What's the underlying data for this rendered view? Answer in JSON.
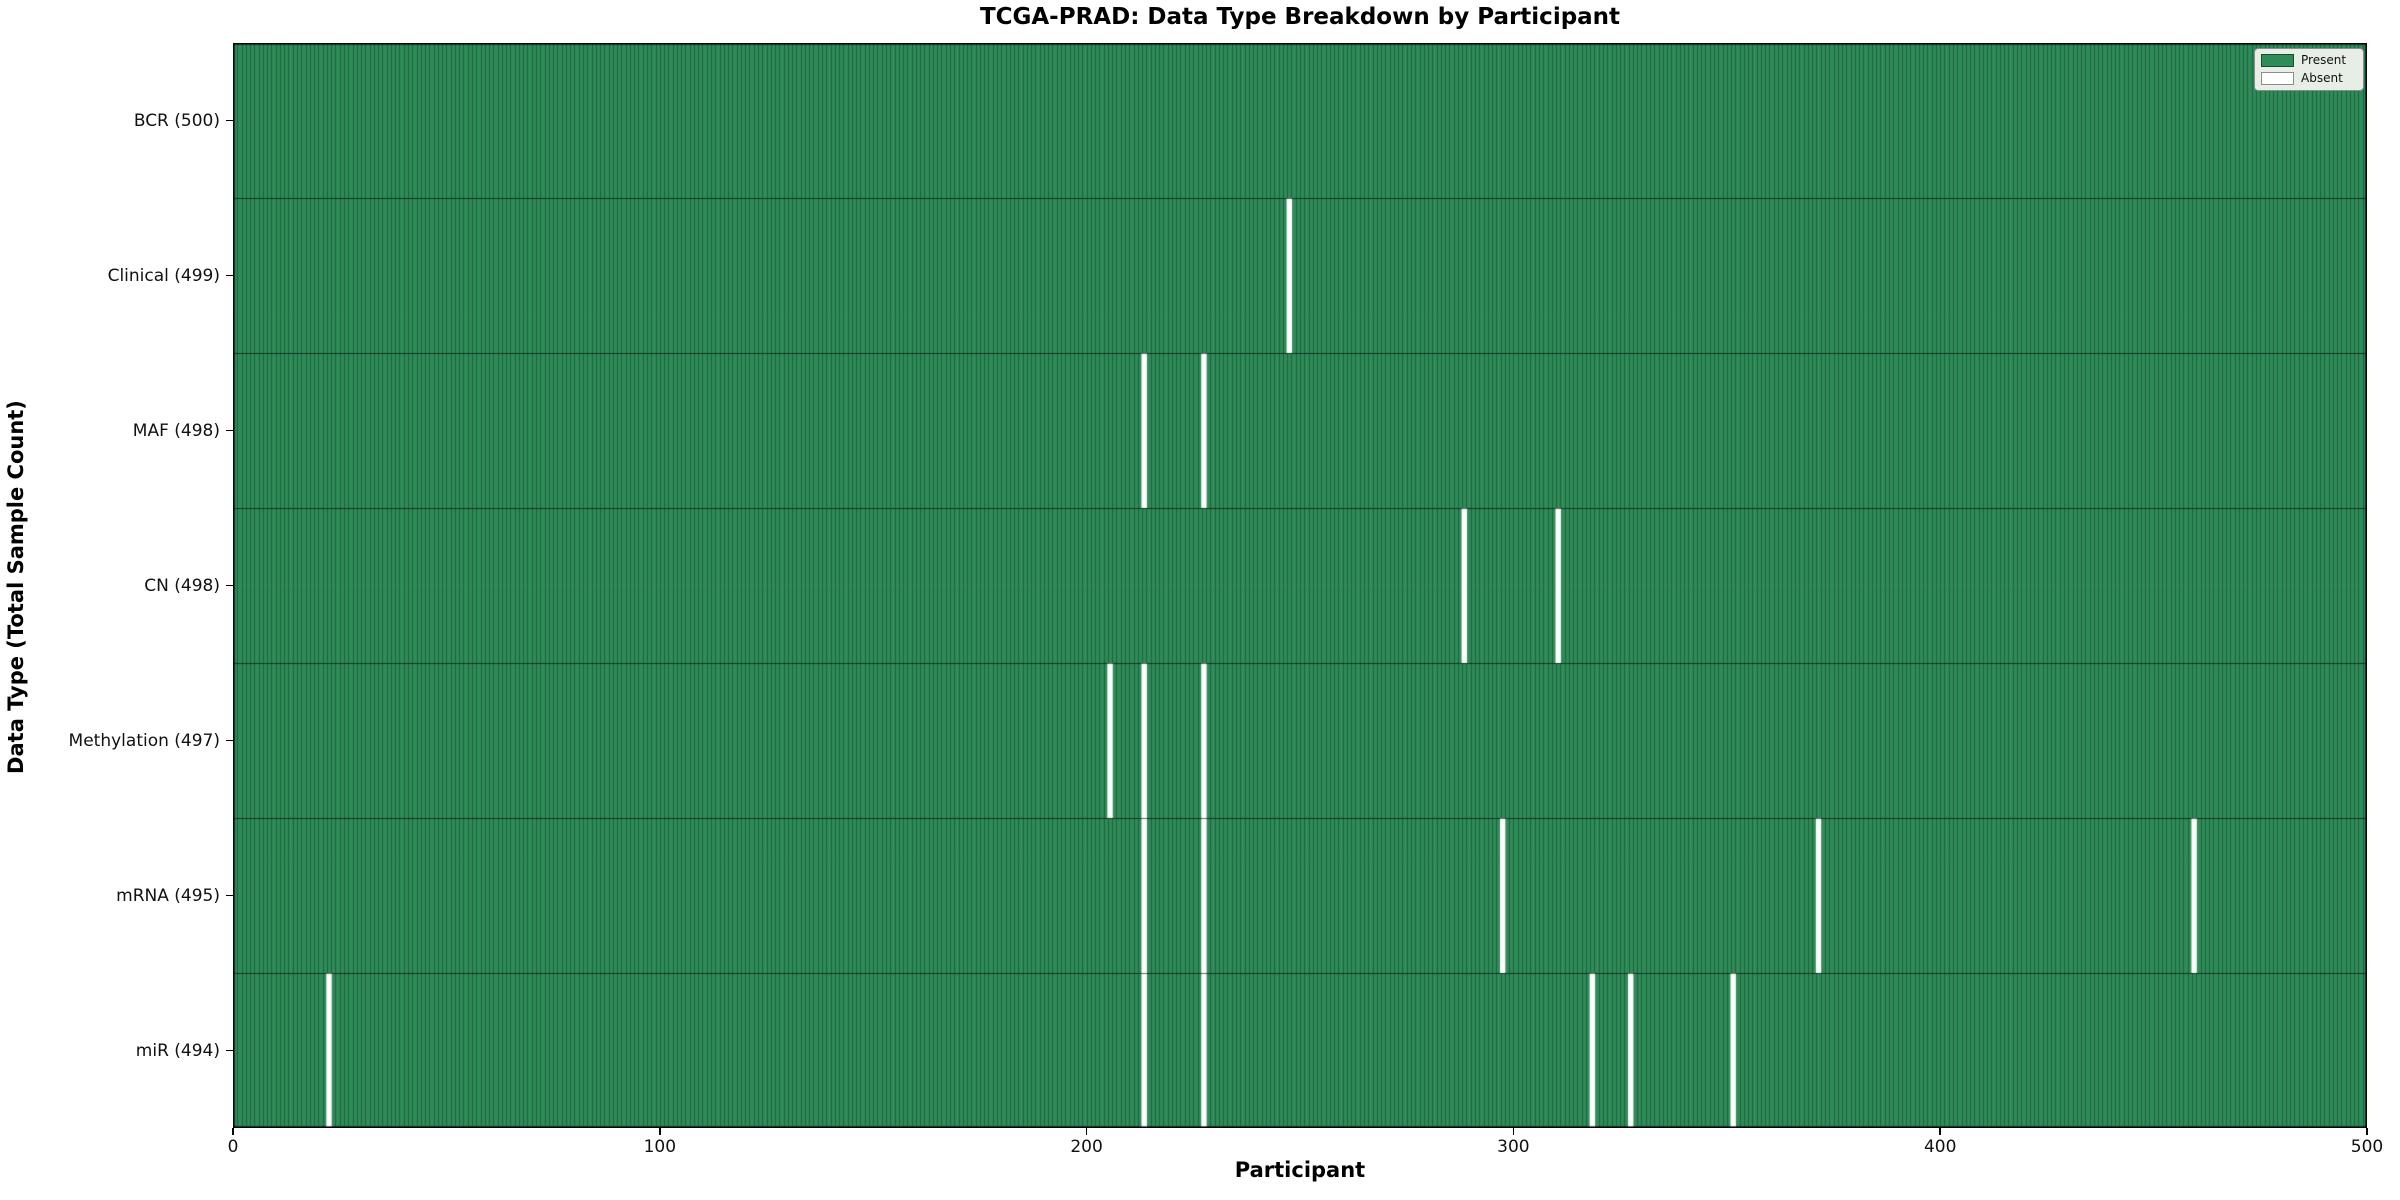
{
  "colors": {
    "present": "#2f8b57",
    "present_edge": "#1e6240",
    "row_divider": "rgba(0,0,0,0.6)",
    "absent": "#ffffff",
    "axis": "#000000",
    "legend_bg": "#e6eee6"
  },
  "legend": {
    "present_label": "Present",
    "absent_label": "Absent"
  },
  "chart_data": {
    "type": "heatmap",
    "title": "TCGA-PRAD: Data Type Breakdown by Participant",
    "xlabel": "Participant",
    "ylabel": "Data Type (Total Sample Count)",
    "x_range": [
      0,
      500
    ],
    "x_ticks": [
      0,
      100,
      200,
      300,
      400,
      500
    ],
    "n_participants": 500,
    "legend_entries": [
      "Present",
      "Absent"
    ],
    "legend_position": "upper right",
    "grid": false,
    "rows": [
      {
        "label": "BCR (500)",
        "data_type": "BCR",
        "total": 500,
        "absent_participants": []
      },
      {
        "label": "Clinical (499)",
        "data_type": "Clinical",
        "total": 499,
        "absent_participants": [
          247
        ]
      },
      {
        "label": "MAF (498)",
        "data_type": "MAF",
        "total": 498,
        "absent_participants": [
          213,
          227
        ]
      },
      {
        "label": "CN (498)",
        "data_type": "CN",
        "total": 498,
        "absent_participants": [
          288,
          310
        ]
      },
      {
        "label": "Methylation (497)",
        "data_type": "Methylation",
        "total": 497,
        "absent_participants": [
          205,
          213,
          227
        ]
      },
      {
        "label": "mRNA (495)",
        "data_type": "mRNA",
        "total": 495,
        "absent_participants": [
          213,
          227,
          297,
          371,
          459
        ]
      },
      {
        "label": "miR (494)",
        "data_type": "miR",
        "total": 494,
        "absent_participants": [
          22,
          213,
          227,
          318,
          327,
          351
        ]
      }
    ]
  }
}
